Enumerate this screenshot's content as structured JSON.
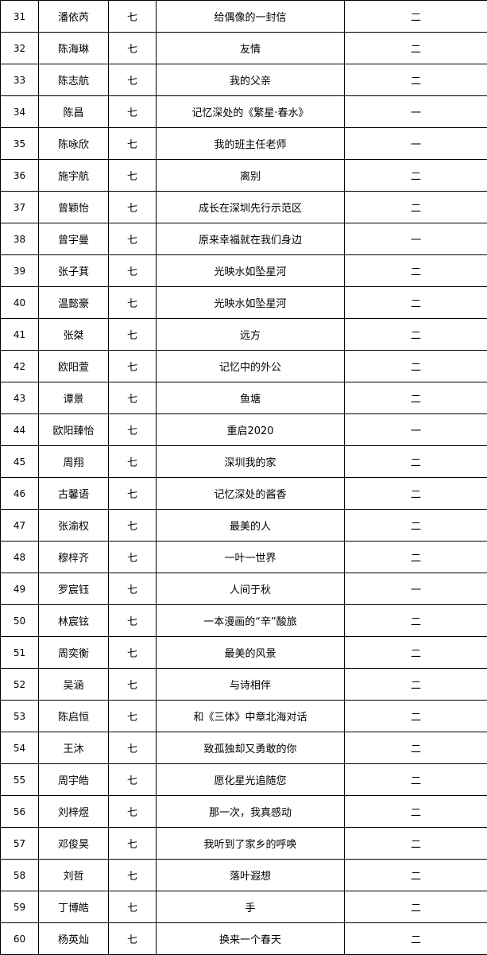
{
  "rows": [
    {
      "no": "31",
      "name": "潘依芮",
      "grade": "七",
      "title": "给偶像的一封信",
      "award": "二"
    },
    {
      "no": "32",
      "name": "陈海琳",
      "grade": "七",
      "title": "友情",
      "award": "二"
    },
    {
      "no": "33",
      "name": "陈志航",
      "grade": "七",
      "title": "我的父亲",
      "award": "二"
    },
    {
      "no": "34",
      "name": "陈昌",
      "grade": "七",
      "title": "记忆深处的《繁星·春水》",
      "award": "一"
    },
    {
      "no": "35",
      "name": "陈咏欣",
      "grade": "七",
      "title": "我的班主任老师",
      "award": "一"
    },
    {
      "no": "36",
      "name": "施宇航",
      "grade": "七",
      "title": "离别",
      "award": "二"
    },
    {
      "no": "37",
      "name": "曾颖怡",
      "grade": "七",
      "title": "成长在深圳先行示范区",
      "award": "二"
    },
    {
      "no": "38",
      "name": "曾宇曼",
      "grade": "七",
      "title": "原来幸福就在我们身边",
      "award": "一"
    },
    {
      "no": "39",
      "name": "张子萁",
      "grade": "七",
      "title": "光映水如坠星河",
      "award": "二"
    },
    {
      "no": "40",
      "name": "温懿豪",
      "grade": "七",
      "title": "光映水如坠星河",
      "award": "二"
    },
    {
      "no": "41",
      "name": "张桀",
      "grade": "七",
      "title": "远方",
      "award": "二"
    },
    {
      "no": "42",
      "name": "欧阳萱",
      "grade": "七",
      "title": "记忆中的外公",
      "award": "二"
    },
    {
      "no": "43",
      "name": "谭景",
      "grade": "七",
      "title": "鱼塘",
      "award": "二"
    },
    {
      "no": "44",
      "name": "欧阳臻怡",
      "grade": "七",
      "title": "重启2020",
      "award": "一"
    },
    {
      "no": "45",
      "name": "周翔",
      "grade": "七",
      "title": "深圳我的家",
      "award": "二"
    },
    {
      "no": "46",
      "name": "古馨语",
      "grade": "七",
      "title": "记忆深处的酱香",
      "award": "二"
    },
    {
      "no": "47",
      "name": "张渝权",
      "grade": "七",
      "title": "最美的人",
      "award": "二"
    },
    {
      "no": "48",
      "name": "穆梓齐",
      "grade": "七",
      "title": "一叶一世界",
      "award": "二"
    },
    {
      "no": "49",
      "name": "罗宸钰",
      "grade": "七",
      "title": "人间于秋",
      "award": "一"
    },
    {
      "no": "50",
      "name": "林宸铉",
      "grade": "七",
      "title": "一本漫画的“辛”酸旅",
      "award": "二"
    },
    {
      "no": "51",
      "name": "周奕衡",
      "grade": "七",
      "title": "最美的风景",
      "award": "二"
    },
    {
      "no": "52",
      "name": "吴涵",
      "grade": "七",
      "title": "与诗相伴",
      "award": "二"
    },
    {
      "no": "53",
      "name": "陈启恒",
      "grade": "七",
      "title": "和《三体》中章北海对话",
      "award": "二"
    },
    {
      "no": "54",
      "name": "王沐",
      "grade": "七",
      "title": "致孤独却又勇敢的你",
      "award": "二"
    },
    {
      "no": "55",
      "name": "周宇皓",
      "grade": "七",
      "title": "愿化星光追随您",
      "award": "二"
    },
    {
      "no": "56",
      "name": "刘梓煜",
      "grade": "七",
      "title": "那一次，我真感动",
      "award": "二"
    },
    {
      "no": "57",
      "name": "邓俊昊",
      "grade": "七",
      "title": "我听到了家乡的呼唤",
      "award": "二"
    },
    {
      "no": "58",
      "name": "刘哲",
      "grade": "七",
      "title": "落叶遐想",
      "award": "二"
    },
    {
      "no": "59",
      "name": "丁博皓",
      "grade": "七",
      "title": "手",
      "award": "二"
    },
    {
      "no": "60",
      "name": "杨英灿",
      "grade": "七",
      "title": "换来一个春天",
      "award": "二"
    }
  ]
}
